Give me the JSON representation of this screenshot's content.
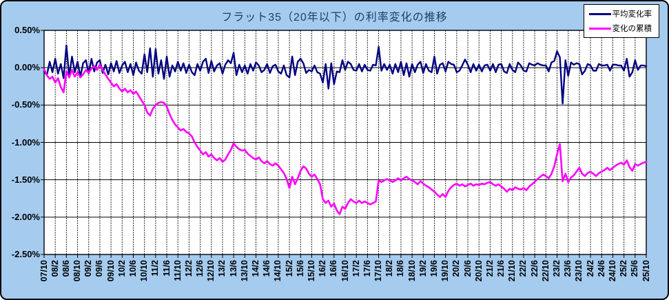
{
  "title": "フラット35（20年以下）の利率変化の推移",
  "legend": {
    "position": "top-right",
    "items": [
      {
        "label": "平均変化率",
        "color": "#000080"
      },
      {
        "label": "変化の累積",
        "color": "#FF00FF"
      }
    ]
  },
  "colors": {
    "canvas_background": "#A5CBEF",
    "plot_background": "#FFFFFF",
    "grid_line": "#000000",
    "title_text": "#1F3F66",
    "series_average": "#000080",
    "series_cumulative": "#FF00FF"
  },
  "chart_data": {
    "type": "line",
    "title": "フラット35（20年以下）の利率変化の推移",
    "xlabel": "",
    "ylabel": "",
    "ylim": [
      -2.5,
      0.5
    ],
    "grid": true,
    "legend_position": "top-right",
    "x_frequency": "monthly",
    "x_start": "07/10",
    "x_end": "25/10",
    "y_tick_labels": [
      "0.50%",
      "0.00%",
      "-0.50%",
      "-1.00%",
      "-1.50%",
      "-2.00%",
      "-2.50%"
    ],
    "x_tick_labels": [
      "07/10",
      "08/2",
      "08/6",
      "08/10",
      "09/2",
      "09/6",
      "09/10",
      "10/2",
      "10/6",
      "10/10",
      "11/2",
      "11/6",
      "11/10",
      "12/2",
      "12/6",
      "12/10",
      "13/2",
      "13/6",
      "13/10",
      "14/2",
      "14/6",
      "14/10",
      "15/2",
      "15/6",
      "15/10",
      "16/2",
      "16/6",
      "16/10",
      "17/2",
      "17/6",
      "17/10",
      "18/2",
      "18/6",
      "18/10",
      "19/2",
      "19/6",
      "19/10",
      "20/2",
      "20/6",
      "20/10",
      "21/2",
      "21/6",
      "21/10",
      "22/2",
      "22/6",
      "22/10",
      "23/2",
      "23/6",
      "23/10",
      "24/2",
      "24/6",
      "24/10",
      "25/2",
      "25/6",
      "25/10"
    ],
    "series": [
      {
        "name": "平均変化率",
        "color": "#000080",
        "unit": "%",
        "values": [
          -0.05,
          -0.1,
          0.08,
          -0.06,
          0.12,
          -0.08,
          0.05,
          -0.14,
          0.3,
          -0.12,
          0.15,
          -0.06,
          0.08,
          -0.12,
          0.06,
          0.1,
          -0.08,
          0.12,
          -0.05,
          0.07,
          0.1,
          -0.07,
          0.04,
          -0.09,
          0.06,
          -0.05,
          0.09,
          -0.07,
          0.03,
          0.08,
          -0.06,
          0.05,
          -0.1,
          0.07,
          -0.04,
          -0.08,
          0.18,
          -0.06,
          0.26,
          -0.12,
          0.25,
          -0.08,
          0.1,
          -0.15,
          0.15,
          -0.12,
          0.03,
          -0.05,
          0.08,
          -0.04,
          0.06,
          -0.07,
          0.04,
          -0.06,
          -0.1,
          0.05,
          -0.04,
          0.08,
          0.12,
          -0.07,
          0.09,
          -0.05,
          0.03,
          0.06,
          -0.08,
          0.04,
          0.1,
          0.06,
          0.2,
          -0.1,
          0.04,
          -0.06,
          0.03,
          -0.08,
          0.05,
          -0.04,
          0.07,
          0.03,
          -0.06,
          -0.03,
          0.05,
          -0.07,
          0.02,
          0.04,
          -0.05,
          -0.08,
          0.03,
          -0.1,
          -0.13,
          0.15,
          -0.1,
          0.08,
          0.12,
          0.06,
          -0.07,
          -0.03,
          -0.05,
          0.03,
          -0.06,
          -0.08,
          -0.2,
          0.05,
          -0.28,
          0.06,
          -0.22,
          -0.05,
          -0.06,
          0.1,
          -0.03,
          0.08,
          0.05,
          -0.03,
          -0.04,
          0.05,
          -0.05,
          0.04,
          -0.03,
          -0.04,
          0.04,
          0.03,
          0.28,
          -0.04,
          0.05,
          -0.03,
          0.04,
          -0.08,
          0.05,
          -0.06,
          0.08,
          -0.1,
          0.06,
          -0.12,
          0.05,
          -0.06,
          0.04,
          0.08,
          -0.07,
          0.05,
          -0.04,
          -0.06,
          0.15,
          -0.08,
          0.04,
          0.06,
          -0.05,
          0.08,
          0.05,
          0.04,
          -0.06,
          -0.04,
          0.03,
          0.11,
          0.04,
          -0.06,
          0.05,
          -0.04,
          0.04,
          -0.05,
          0.03,
          0.04,
          -0.04,
          0.05,
          -0.06,
          0.04,
          0.05,
          -0.05,
          -0.07,
          0.05,
          -0.03,
          -0.06,
          0.07,
          0.03,
          -0.04,
          -0.05,
          0.06,
          0.04,
          0.03,
          0.06,
          0.04,
          0.03,
          0.03,
          -0.05,
          0.07,
          0.09,
          0.22,
          0.14,
          -0.48,
          0.1,
          -0.11,
          0.07,
          0.04,
          0.06,
          0.05,
          -0.09,
          -0.04,
          0.05,
          0.03,
          -0.04,
          -0.04,
          0.05,
          0.03,
          0.03,
          0.04,
          -0.04,
          0.04,
          0.04,
          0.03,
          0.03,
          -0.04,
          0.12,
          -0.12,
          -0.06,
          0.1,
          -0.03,
          0.03,
          0.03,
          0.02
        ]
      },
      {
        "name": "変化の累積",
        "color": "#FF00FF",
        "unit": "%",
        "values": [
          -0.02,
          -0.1,
          -0.15,
          -0.12,
          -0.2,
          -0.14,
          -0.26,
          -0.33,
          -0.05,
          -0.13,
          -0.03,
          -0.12,
          -0.06,
          -0.13,
          -0.09,
          -0.03,
          -0.07,
          -0.01,
          0.02,
          -0.03,
          0.04,
          -0.03,
          -0.09,
          -0.15,
          -0.2,
          -0.25,
          -0.22,
          -0.28,
          -0.32,
          -0.28,
          -0.33,
          -0.3,
          -0.35,
          -0.32,
          -0.38,
          -0.44,
          -0.5,
          -0.6,
          -0.64,
          -0.55,
          -0.5,
          -0.47,
          -0.46,
          -0.47,
          -0.52,
          -0.62,
          -0.7,
          -0.76,
          -0.8,
          -0.84,
          -0.82,
          -0.86,
          -0.88,
          -0.92,
          -1.0,
          -1.06,
          -1.11,
          -1.16,
          -1.13,
          -1.19,
          -1.16,
          -1.21,
          -1.24,
          -1.21,
          -1.26,
          -1.23,
          -1.16,
          -1.1,
          -1.01,
          -1.06,
          -1.09,
          -1.11,
          -1.1,
          -1.15,
          -1.18,
          -1.21,
          -1.23,
          -1.2,
          -1.25,
          -1.28,
          -1.25,
          -1.29,
          -1.31,
          -1.28,
          -1.31,
          -1.36,
          -1.41,
          -1.49,
          -1.61,
          -1.46,
          -1.56,
          -1.48,
          -1.38,
          -1.32,
          -1.35,
          -1.42,
          -1.46,
          -1.43,
          -1.49,
          -1.56,
          -1.76,
          -1.81,
          -1.78,
          -1.86,
          -1.82,
          -1.91,
          -1.96,
          -1.86,
          -1.89,
          -1.81,
          -1.76,
          -1.79,
          -1.81,
          -1.78,
          -1.81,
          -1.79,
          -1.81,
          -1.83,
          -1.81,
          -1.79,
          -1.51,
          -1.53,
          -1.51,
          -1.49,
          -1.51,
          -1.53,
          -1.51,
          -1.48,
          -1.51,
          -1.48,
          -1.46,
          -1.49,
          -1.51,
          -1.53,
          -1.56,
          -1.52,
          -1.55,
          -1.58,
          -1.6,
          -1.63,
          -1.66,
          -1.7,
          -1.73,
          -1.69,
          -1.73,
          -1.65,
          -1.6,
          -1.57,
          -1.55,
          -1.58,
          -1.56,
          -1.59,
          -1.57,
          -1.55,
          -1.58,
          -1.56,
          -1.57,
          -1.55,
          -1.56,
          -1.54,
          -1.53,
          -1.56,
          -1.58,
          -1.56,
          -1.59,
          -1.62,
          -1.66,
          -1.62,
          -1.64,
          -1.6,
          -1.62,
          -1.63,
          -1.61,
          -1.64,
          -1.59,
          -1.56,
          -1.53,
          -1.49,
          -1.46,
          -1.43,
          -1.45,
          -1.48,
          -1.42,
          -1.32,
          -1.16,
          -1.02,
          -1.52,
          -1.42,
          -1.53,
          -1.47,
          -1.44,
          -1.39,
          -1.34,
          -1.42,
          -1.45,
          -1.41,
          -1.39,
          -1.42,
          -1.45,
          -1.41,
          -1.39,
          -1.37,
          -1.34,
          -1.37,
          -1.34,
          -1.31,
          -1.29,
          -1.27,
          -1.3,
          -1.24,
          -1.33,
          -1.38,
          -1.29,
          -1.31,
          -1.29,
          -1.27,
          -1.26
        ]
      }
    ]
  }
}
